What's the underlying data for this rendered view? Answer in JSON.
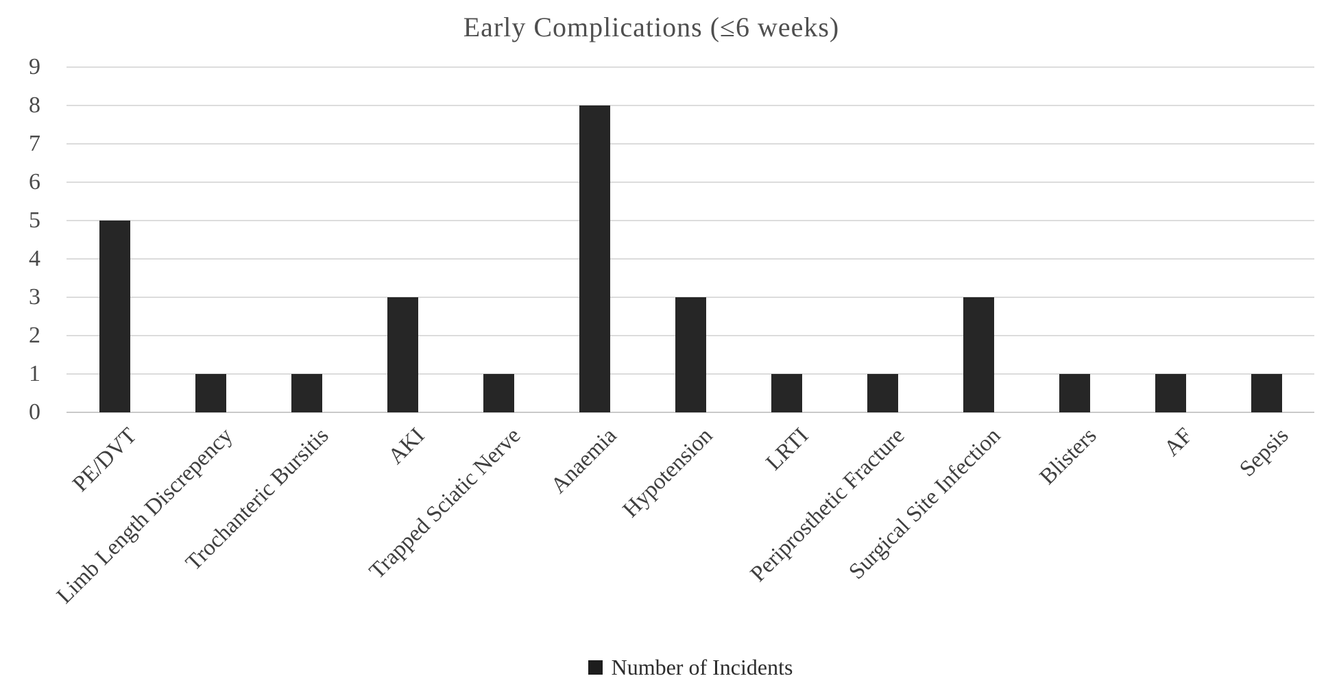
{
  "chart_data": {
    "type": "bar",
    "title": "Early Complications (≤6 weeks)",
    "categories": [
      "PE/DVT",
      "Limb Length Discrepency",
      "Trochanteric Bursitis",
      "AKI",
      "Trapped Sciatic Nerve",
      "Anaemia",
      "Hypotension",
      "LRTI",
      "Periprosthetic Fracture",
      "Surgical Site Infection",
      "Blisters",
      "AF",
      "Sepsis"
    ],
    "values": [
      5,
      1,
      1,
      3,
      1,
      8,
      3,
      1,
      1,
      3,
      1,
      1,
      1
    ],
    "series_name": "Number of Incidents",
    "xlabel": "",
    "ylabel": "",
    "ylim": [
      0,
      9
    ],
    "yticks": [
      0,
      1,
      2,
      3,
      4,
      5,
      6,
      7,
      8,
      9
    ],
    "grid": "horizontal",
    "legend_position": "bottom",
    "bar_color": "#262626",
    "gridline_color": "#dcdcdc",
    "title_color": "#4f4f4f",
    "axis_label_color": "#3f3f3f"
  }
}
